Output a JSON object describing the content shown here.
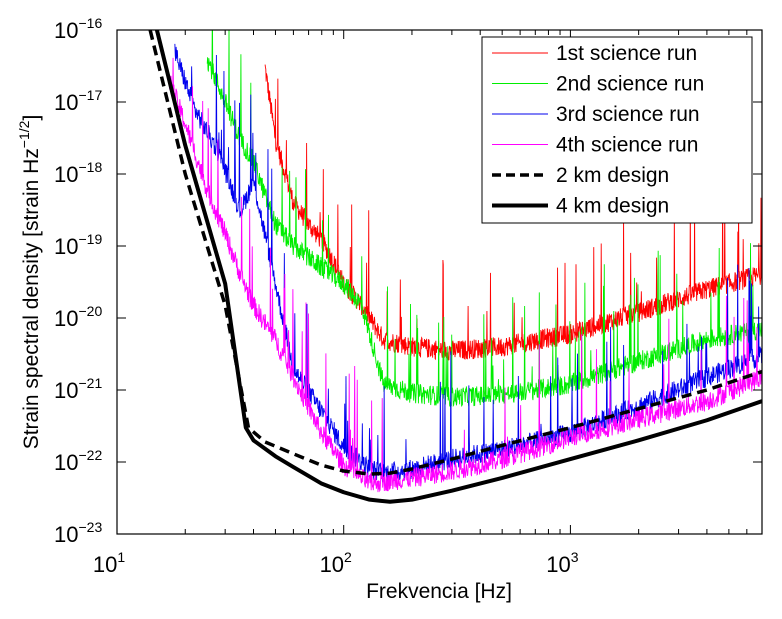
{
  "chart_data": {
    "type": "line",
    "title": "",
    "xlabel": "Frekvencia [Hz]",
    "ylabel_main": "Strain spectral density [strain Hz",
    "ylabel_exp": "−1/2",
    "ylabel_close": "]",
    "xscale": "log",
    "yscale": "log",
    "xlim": [
      10,
      7000
    ],
    "ylim": [
      1e-23,
      1e-16
    ],
    "grid": false,
    "legend_position": "top-right",
    "x_ticks": [
      {
        "base": "10",
        "exp": "1",
        "value": 10
      },
      {
        "base": "10",
        "exp": "2",
        "value": 100
      },
      {
        "base": "10",
        "exp": "3",
        "value": 1000
      }
    ],
    "y_ticks": [
      {
        "base": "10",
        "exp": "−16",
        "value": 1e-16
      },
      {
        "base": "10",
        "exp": "−17",
        "value": 1e-17
      },
      {
        "base": "10",
        "exp": "−18",
        "value": 1e-18
      },
      {
        "base": "10",
        "exp": "−19",
        "value": 1e-19
      },
      {
        "base": "10",
        "exp": "−20",
        "value": 1e-20
      },
      {
        "base": "10",
        "exp": "−21",
        "value": 1e-21
      },
      {
        "base": "10",
        "exp": "−22",
        "value": 1e-22
      },
      {
        "base": "10",
        "exp": "−23",
        "value": 1e-23
      }
    ],
    "series": [
      {
        "name": "1st science run",
        "color": "#ff0000",
        "style": "noisy",
        "x": [
          45,
          50,
          60,
          70,
          80,
          90,
          100,
          120,
          150,
          200,
          300,
          500,
          1000,
          2000,
          4000,
          7000
        ],
        "y": [
          3e-17,
          3e-18,
          4e-19,
          2e-19,
          1.2e-19,
          6e-20,
          3e-20,
          1.5e-20,
          5e-21,
          4e-21,
          3.5e-21,
          4e-21,
          6e-21,
          1.2e-20,
          2.5e-20,
          4e-20
        ]
      },
      {
        "name": "2nd science run",
        "color": "#00ee00",
        "style": "noisy",
        "x": [
          25,
          30,
          35,
          40,
          45,
          50,
          60,
          80,
          100,
          120,
          150,
          200,
          300,
          500,
          1000,
          2000,
          4000,
          7000
        ],
        "y": [
          4e-17,
          1e-17,
          3e-18,
          1.5e-18,
          5e-19,
          2e-19,
          1e-19,
          5e-20,
          3e-20,
          1.5e-20,
          1.2e-21,
          9e-22,
          8e-22,
          8.5e-22,
          1.2e-21,
          2.5e-21,
          5e-21,
          7e-21
        ]
      },
      {
        "name": "3rd science run",
        "color": "#0000ee",
        "style": "noisy",
        "x": [
          18,
          22,
          28,
          35,
          40,
          50,
          60,
          80,
          100,
          130,
          150,
          200,
          300,
          500,
          1000,
          2000,
          4000,
          7000
        ],
        "y": [
          5e-17,
          8e-18,
          2e-18,
          3e-19,
          8e-19,
          3e-20,
          2e-21,
          5e-22,
          1.6e-22,
          8e-23,
          7e-23,
          8e-23,
          1.1e-22,
          1.5e-22,
          2.5e-22,
          6e-22,
          1.5e-21,
          3e-21
        ]
      },
      {
        "name": "4th science run",
        "color": "#ff00ff",
        "style": "noisy",
        "x": [
          17,
          20,
          25,
          30,
          35,
          40,
          50,
          60,
          80,
          100,
          130,
          200,
          300,
          500,
          1000,
          2000,
          4000,
          7000
        ],
        "y": [
          2e-17,
          5e-18,
          6e-19,
          1.5e-19,
          4e-20,
          1.5e-20,
          5e-21,
          1.5e-21,
          2.5e-22,
          9e-23,
          5e-23,
          6e-23,
          7.5e-23,
          1.1e-22,
          2.2e-22,
          4e-22,
          7e-22,
          1.5e-21
        ]
      },
      {
        "name": "2 km design",
        "color": "#000000",
        "style": "dashed",
        "x": [
          14,
          20,
          30,
          38,
          45,
          60,
          80,
          100,
          130,
          160,
          200,
          300,
          500,
          1000,
          2000,
          4000,
          7000
        ],
        "y": [
          1e-16,
          1e-18,
          1.5e-20,
          3e-22,
          1.9e-22,
          1.3e-22,
          9e-23,
          7.5e-23,
          6.8e-23,
          7e-23,
          8e-23,
          1.1e-22,
          1.7e-22,
          3e-22,
          5.5e-22,
          1e-21,
          1.8e-21
        ]
      },
      {
        "name": "4 km design",
        "color": "#000000",
        "style": "solid",
        "x": [
          15,
          20,
          30,
          37,
          40,
          50,
          60,
          80,
          100,
          130,
          160,
          200,
          300,
          500,
          1000,
          2000,
          4000,
          7000
        ],
        "y": [
          1e-16,
          2.5e-18,
          3e-20,
          3e-22,
          2e-22,
          1.2e-22,
          8.5e-23,
          5e-23,
          3.8e-23,
          3e-23,
          2.8e-23,
          3e-23,
          4e-23,
          6e-23,
          1.1e-22,
          2e-22,
          3.8e-22,
          7e-22
        ]
      }
    ]
  }
}
